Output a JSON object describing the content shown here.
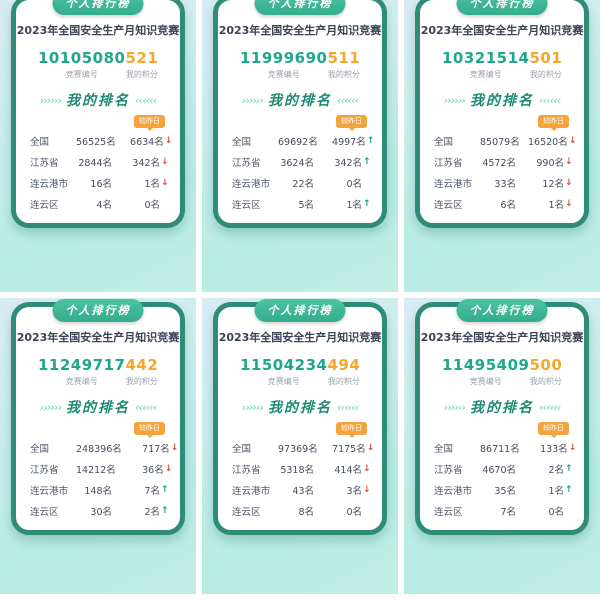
{
  "shared": {
    "ribbon": "个人排行榜",
    "title": "2023年全国安全生产月知识竞赛",
    "id_label": "竞赛编号",
    "score_label": "我的积分",
    "rank_heading": "我的排名",
    "chevrons_left": "››››››",
    "chevrons_right": "‹‹‹‹‹‹",
    "vs_yesterday": "较昨日",
    "down_arrow": "↓",
    "up_arrow": "↑",
    "colors": {
      "card_border": "#2f8d77",
      "ribbon_green": "#3cb794",
      "id_teal": "#1fa78b",
      "score_orange": "#f5a62b",
      "tag_orange": "#f5a33c",
      "trend_down_red": "#e0493e",
      "trend_up_teal": "#12a08f",
      "background_mint": "#b7ece2"
    }
  },
  "cards": [
    {
      "id": "10105080",
      "score": "521",
      "rows": [
        {
          "label": "全国",
          "rank": "56525名",
          "change": "6634名",
          "trend": "down"
        },
        {
          "label": "江苏省",
          "rank": "2844名",
          "change": "342名",
          "trend": "down"
        },
        {
          "label": "连云港市",
          "rank": "16名",
          "change": "1名",
          "trend": "down"
        },
        {
          "label": "连云区",
          "rank": "4名",
          "change": "0名",
          "trend": "none"
        }
      ]
    },
    {
      "id": "11999690",
      "score": "511",
      "rows": [
        {
          "label": "全国",
          "rank": "69692名",
          "change": "4997名",
          "trend": "up"
        },
        {
          "label": "江苏省",
          "rank": "3624名",
          "change": "342名",
          "trend": "up"
        },
        {
          "label": "连云港市",
          "rank": "22名",
          "change": "0名",
          "trend": "none"
        },
        {
          "label": "连云区",
          "rank": "5名",
          "change": "1名",
          "trend": "up"
        }
      ]
    },
    {
      "id": "10321514",
      "score": "501",
      "rows": [
        {
          "label": "全国",
          "rank": "85079名",
          "change": "16520名",
          "trend": "down"
        },
        {
          "label": "江苏省",
          "rank": "4572名",
          "change": "990名",
          "trend": "down"
        },
        {
          "label": "连云港市",
          "rank": "33名",
          "change": "12名",
          "trend": "down"
        },
        {
          "label": "连云区",
          "rank": "6名",
          "change": "1名",
          "trend": "down"
        }
      ]
    },
    {
      "id": "11249717",
      "score": "442",
      "rows": [
        {
          "label": "全国",
          "rank": "248396名",
          "change": "717名",
          "trend": "down"
        },
        {
          "label": "江苏省",
          "rank": "14212名",
          "change": "36名",
          "trend": "down"
        },
        {
          "label": "连云港市",
          "rank": "148名",
          "change": "7名",
          "trend": "up"
        },
        {
          "label": "连云区",
          "rank": "30名",
          "change": "2名",
          "trend": "up"
        }
      ]
    },
    {
      "id": "11504234",
      "score": "494",
      "rows": [
        {
          "label": "全国",
          "rank": "97369名",
          "change": "7175名",
          "trend": "down"
        },
        {
          "label": "江苏省",
          "rank": "5318名",
          "change": "414名",
          "trend": "down"
        },
        {
          "label": "连云港市",
          "rank": "43名",
          "change": "3名",
          "trend": "down"
        },
        {
          "label": "连云区",
          "rank": "8名",
          "change": "0名",
          "trend": "none"
        }
      ]
    },
    {
      "id": "11495409",
      "score": "500",
      "rows": [
        {
          "label": "全国",
          "rank": "86711名",
          "change": "133名",
          "trend": "down"
        },
        {
          "label": "江苏省",
          "rank": "4670名",
          "change": "2名",
          "trend": "up"
        },
        {
          "label": "连云港市",
          "rank": "35名",
          "change": "1名",
          "trend": "up"
        },
        {
          "label": "连云区",
          "rank": "7名",
          "change": "0名",
          "trend": "none"
        }
      ]
    }
  ]
}
